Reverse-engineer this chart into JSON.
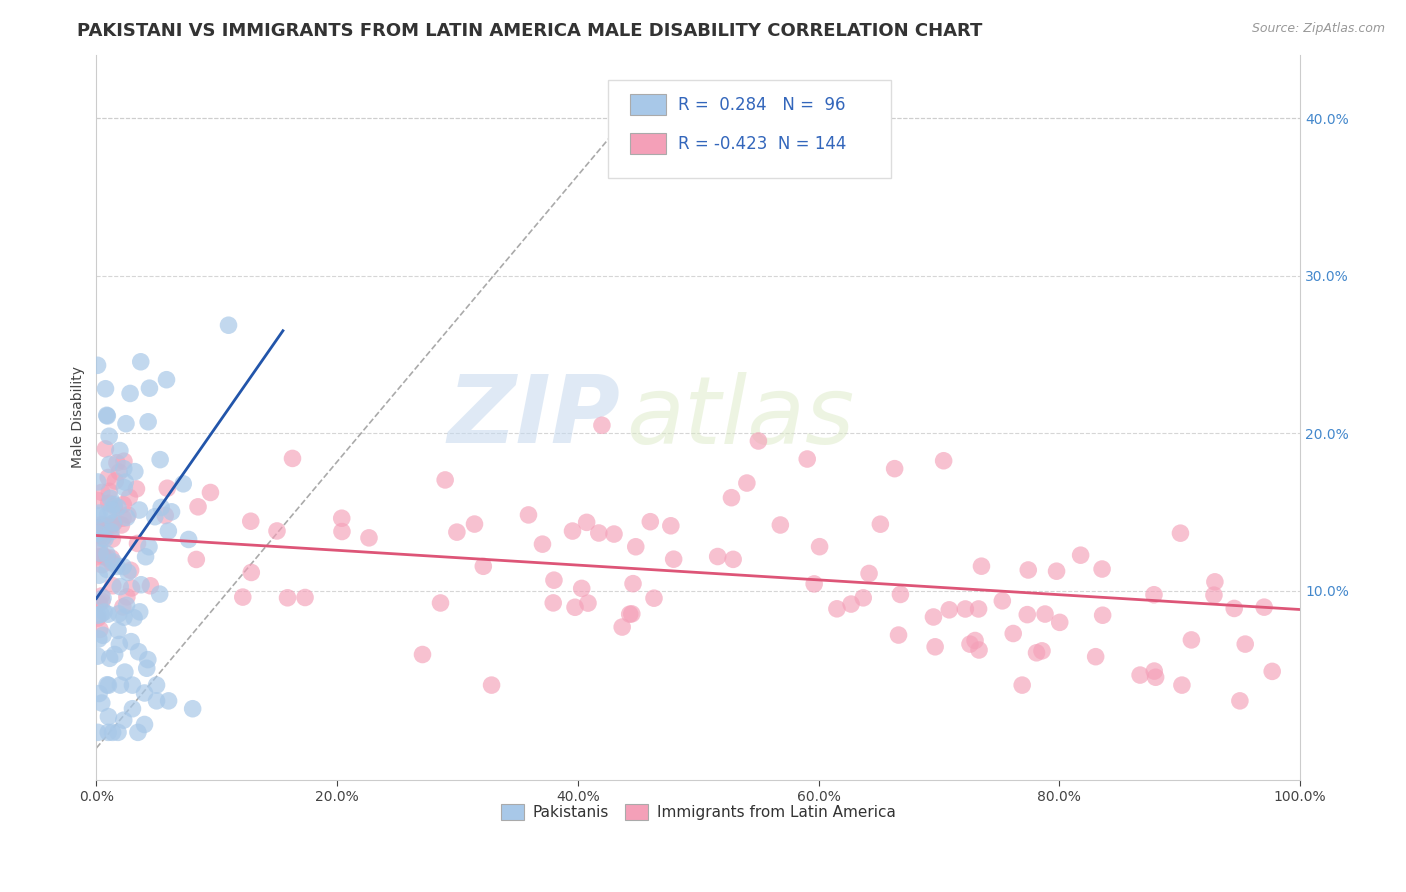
{
  "title": "PAKISTANI VS IMMIGRANTS FROM LATIN AMERICA MALE DISABILITY CORRELATION CHART",
  "source": "Source: ZipAtlas.com",
  "ylabel": "Male Disability",
  "xlim": [
    0,
    1.0
  ],
  "ylim": [
    -0.02,
    0.44
  ],
  "xticks": [
    0.0,
    0.2,
    0.4,
    0.6,
    0.8,
    1.0
  ],
  "yticks_right": [
    0.1,
    0.2,
    0.3,
    0.4
  ],
  "blue_R": 0.284,
  "blue_N": 96,
  "pink_R": -0.423,
  "pink_N": 144,
  "blue_color": "#a8c8e8",
  "pink_color": "#f4a0b8",
  "blue_line_color": "#2255aa",
  "pink_line_color": "#dd5577",
  "background_color": "#ffffff",
  "grid_color": "#cccccc",
  "watermark_zip": "ZIP",
  "watermark_atlas": "atlas",
  "title_fontsize": 13,
  "axis_fontsize": 10
}
